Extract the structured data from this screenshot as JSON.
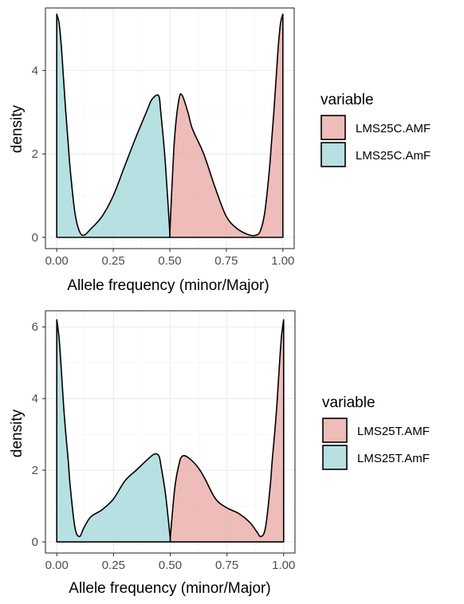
{
  "colors": {
    "amf_fill": "#E8A6A1",
    "amf_line": "#000000",
    "amf_fill_opacity": 0.75,
    "amf_fill_name": "salmon",
    "amf_color_name": "ggplot red",
    "amf_alpha": 0.75,
    "amf_alpha_note": "",
    "amf_label": "",
    "panel_border": "#333333",
    "grid_major": "#ebebeb",
    "grid_minor": "#f5f5f5",
    "amF_fill": "#9FD6D8"
  },
  "chart_data": [
    {
      "type": "area",
      "xlabel": "Allele frequency (minor/Major)",
      "ylabel": "density",
      "xlim": [
        -0.05,
        1.05
      ],
      "ylim": [
        -0.27,
        5.5
      ],
      "xticks": [
        0.0,
        0.25,
        0.5,
        0.75,
        1.0
      ],
      "xtick_labels": [
        "0.00",
        "0.25",
        "0.50",
        "0.75",
        "1.00"
      ],
      "yticks": [
        0,
        2,
        4
      ],
      "ytick_labels": [
        "0",
        "2",
        "4"
      ],
      "grid": true,
      "legend_title": "variable",
      "legend_position": "right",
      "series": [
        {
          "name": "LMS25C.AMF",
          "color": "#E8A6A1",
          "x": [
            0.5,
            0.52,
            0.54,
            0.555,
            0.58,
            0.6,
            0.65,
            0.7,
            0.75,
            0.8,
            0.85,
            0.88,
            0.9,
            0.92,
            0.94,
            0.95,
            0.96,
            0.97,
            0.98,
            0.99,
            1.0
          ],
          "y": [
            0.1,
            2.3,
            3.3,
            3.4,
            3.0,
            2.6,
            2.0,
            1.2,
            0.5,
            0.2,
            0.06,
            0.05,
            0.15,
            0.6,
            1.6,
            2.3,
            3.0,
            3.8,
            4.6,
            5.15,
            5.35
          ]
        },
        {
          "name": "LMS25C.AmF",
          "color": "#9FD6D8",
          "x": [
            0.0,
            0.01,
            0.02,
            0.03,
            0.04,
            0.05,
            0.06,
            0.08,
            0.1,
            0.12,
            0.15,
            0.2,
            0.25,
            0.3,
            0.35,
            0.4,
            0.42,
            0.45,
            0.46,
            0.48,
            0.5
          ],
          "y": [
            5.35,
            5.15,
            4.6,
            3.8,
            3.0,
            2.3,
            1.6,
            0.6,
            0.15,
            0.05,
            0.2,
            0.5,
            1.0,
            1.7,
            2.4,
            3.05,
            3.3,
            3.4,
            3.0,
            1.8,
            0.1
          ]
        }
      ]
    },
    {
      "type": "area",
      "xlabel": "Allele frequency (minor/Major)",
      "ylabel": "density",
      "xlim": [
        -0.05,
        1.05
      ],
      "ylim": [
        -0.31,
        6.45
      ],
      "xticks": [
        0.0,
        0.25,
        0.5,
        0.75,
        1.0
      ],
      "xtick_labels": [
        "0.00",
        "0.25",
        "0.50",
        "0.75",
        "1.00"
      ],
      "yticks": [
        0,
        2,
        4,
        6
      ],
      "ytick_labels": [
        "0",
        "2",
        "4",
        "6"
      ],
      "grid": true,
      "legend_title": "variable",
      "legend_position": "right",
      "series": [
        {
          "name": "LMS25T.AMF",
          "color": "#E8A6A1",
          "x": [
            0.5,
            0.52,
            0.54,
            0.555,
            0.58,
            0.62,
            0.65,
            0.7,
            0.75,
            0.8,
            0.85,
            0.88,
            0.9,
            0.92,
            0.94,
            0.95,
            0.96,
            0.97,
            0.98,
            0.99,
            1.0
          ],
          "y": [
            0.1,
            1.5,
            2.2,
            2.4,
            2.35,
            2.1,
            1.8,
            1.2,
            0.95,
            0.8,
            0.55,
            0.3,
            0.15,
            0.4,
            1.5,
            2.3,
            3.0,
            3.8,
            4.8,
            5.7,
            6.2
          ]
        },
        {
          "name": "LMS25T.AmF",
          "color": "#9FD6D8",
          "x": [
            0.0,
            0.01,
            0.02,
            0.03,
            0.04,
            0.05,
            0.06,
            0.08,
            0.1,
            0.12,
            0.15,
            0.2,
            0.25,
            0.3,
            0.35,
            0.4,
            0.43,
            0.45,
            0.46,
            0.48,
            0.5
          ],
          "y": [
            6.2,
            5.7,
            4.8,
            3.8,
            3.0,
            2.3,
            1.5,
            0.4,
            0.15,
            0.4,
            0.7,
            0.9,
            1.2,
            1.7,
            2.0,
            2.3,
            2.45,
            2.4,
            2.1,
            1.3,
            0.1
          ]
        }
      ]
    }
  ]
}
